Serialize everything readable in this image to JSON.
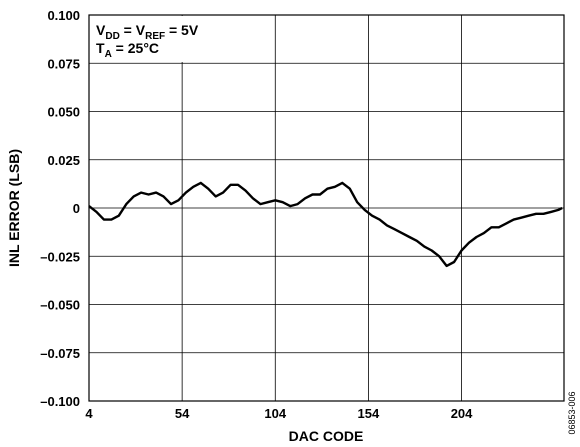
{
  "chart_data": {
    "type": "line",
    "xlabel": "DAC CODE",
    "ylabel": "INL ERROR (LSB)",
    "xlim": [
      4,
      259
    ],
    "ylim": [
      -0.1,
      0.1
    ],
    "x_ticks": [
      4,
      54,
      104,
      154,
      204
    ],
    "x_tick_labels": [
      "4",
      "54",
      "104",
      "154",
      "204"
    ],
    "y_ticks": [
      0.1,
      0.075,
      0.05,
      0.025,
      0,
      -0.025,
      -0.05,
      -0.075,
      -0.1
    ],
    "y_tick_labels": [
      "0.100",
      "0.075",
      "0.050",
      "0.025",
      "0",
      "–0.025",
      "–0.050",
      "–0.075",
      "–0.100"
    ],
    "grid": true,
    "annotation": {
      "line1": {
        "main": "V",
        "sub1": "DD",
        "mid": " = V",
        "sub2": "REF",
        "tail": " = 5V"
      },
      "line2": {
        "main": "T",
        "sub1": "A",
        "tail": " = 25°C"
      }
    },
    "figure_id": "06853-006",
    "series": [
      {
        "color": "#000000",
        "x": [
          4,
          8,
          12,
          16,
          20,
          24,
          28,
          32,
          36,
          40,
          44,
          48,
          52,
          56,
          60,
          64,
          68,
          72,
          76,
          80,
          84,
          88,
          92,
          96,
          100,
          104,
          108,
          112,
          116,
          120,
          124,
          128,
          132,
          136,
          140,
          144,
          148,
          152,
          156,
          160,
          164,
          168,
          172,
          176,
          180,
          184,
          188,
          192,
          196,
          200,
          204,
          208,
          212,
          216,
          220,
          224,
          228,
          232,
          236,
          240,
          244,
          248,
          252,
          256,
          258
        ],
        "y": [
          0.001,
          -0.002,
          -0.006,
          -0.006,
          -0.004,
          0.002,
          0.006,
          0.008,
          0.007,
          0.008,
          0.006,
          0.002,
          0.004,
          0.008,
          0.011,
          0.013,
          0.01,
          0.006,
          0.008,
          0.012,
          0.012,
          0.009,
          0.005,
          0.002,
          0.003,
          0.004,
          0.003,
          0.001,
          0.002,
          0.005,
          0.007,
          0.007,
          0.01,
          0.011,
          0.013,
          0.01,
          0.003,
          -0.001,
          -0.004,
          -0.006,
          -0.009,
          -0.011,
          -0.013,
          -0.015,
          -0.017,
          -0.02,
          -0.022,
          -0.025,
          -0.03,
          -0.028,
          -0.022,
          -0.018,
          -0.015,
          -0.013,
          -0.01,
          -0.01,
          -0.008,
          -0.006,
          -0.005,
          -0.004,
          -0.003,
          -0.003,
          -0.002,
          -0.001,
          0.0
        ]
      }
    ]
  }
}
